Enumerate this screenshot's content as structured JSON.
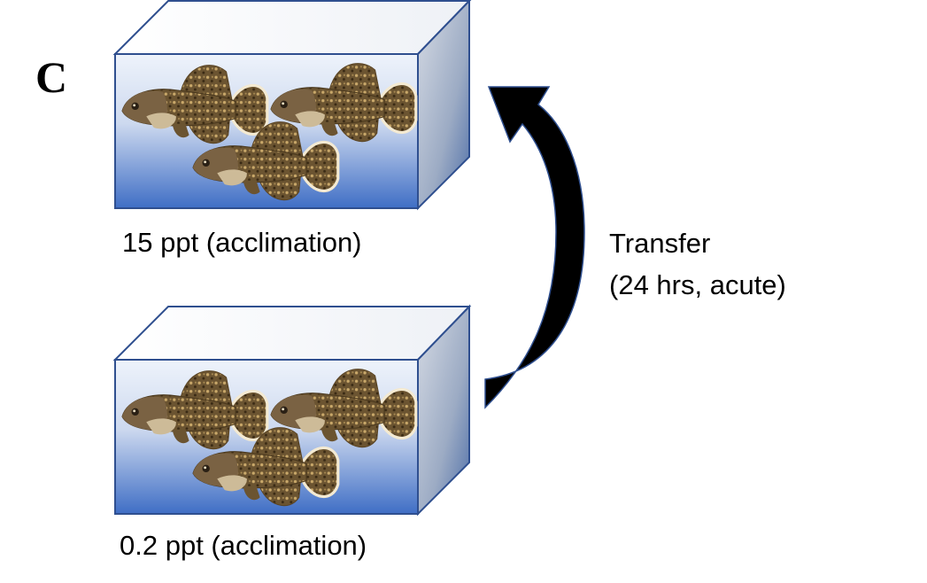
{
  "panel_label": "C",
  "tanks": [
    {
      "caption": "15 ppt (acclimation)",
      "fish_count": 3
    },
    {
      "caption": "0.2 ppt (acclimation)",
      "fish_count": 3
    }
  ],
  "transfer": {
    "line1": "Transfer",
    "line2": "(24 hrs, acute)"
  },
  "colors": {
    "tank_outline": "#2f4f8f",
    "water_deep": "#3f6fc6",
    "water_light": "#e8eef8",
    "side_face": "#8fa3c4",
    "arrow": "#000000"
  }
}
